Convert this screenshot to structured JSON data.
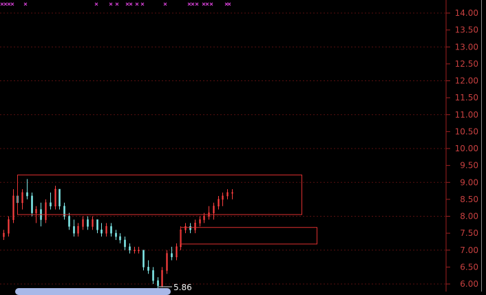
{
  "chart_data": {
    "type": "candlestick",
    "title": "",
    "ylim": [
      6.0,
      14.0
    ],
    "y_ticks": [
      "14.00",
      "13.50",
      "13.00",
      "12.50",
      "12.00",
      "11.50",
      "11.00",
      "10.50",
      "10.00",
      "9.50",
      "9.00",
      "8.50",
      "8.00",
      "7.50",
      "7.00",
      "6.50",
      "6.00"
    ],
    "grid": "horizontal dotted",
    "colors": {
      "up": "#ff4040",
      "down": "#7fe8e8",
      "axis": "#a02020",
      "box": "#e03030",
      "marker": "#d040d0",
      "grid": "#5a1010"
    },
    "bars_ohlc": [
      [
        7.4,
        7.6,
        7.3,
        7.5
      ],
      [
        7.5,
        8.0,
        7.4,
        7.9
      ],
      [
        7.9,
        8.8,
        7.8,
        8.6
      ],
      [
        8.6,
        8.9,
        8.3,
        8.4
      ],
      [
        8.4,
        8.8,
        8.2,
        8.7
      ],
      [
        8.7,
        9.1,
        8.5,
        8.6
      ],
      [
        8.6,
        8.7,
        8.0,
        8.1
      ],
      [
        8.1,
        8.3,
        7.8,
        8.2
      ],
      [
        8.2,
        8.4,
        7.7,
        7.9
      ],
      [
        7.9,
        8.5,
        7.8,
        8.4
      ],
      [
        8.4,
        8.7,
        8.2,
        8.3
      ],
      [
        8.3,
        8.9,
        8.2,
        8.8
      ],
      [
        8.8,
        8.8,
        8.2,
        8.3
      ],
      [
        8.3,
        8.4,
        7.9,
        8.0
      ],
      [
        8.0,
        8.1,
        7.6,
        7.7
      ],
      [
        7.7,
        7.9,
        7.4,
        7.5
      ],
      [
        7.5,
        7.8,
        7.4,
        7.7
      ],
      [
        7.7,
        8.0,
        7.6,
        7.9
      ],
      [
        7.9,
        8.0,
        7.6,
        7.7
      ],
      [
        7.7,
        8.0,
        7.6,
        7.9
      ],
      [
        7.9,
        7.9,
        7.5,
        7.6
      ],
      [
        7.6,
        7.8,
        7.4,
        7.5
      ],
      [
        7.5,
        7.8,
        7.4,
        7.7
      ],
      [
        7.7,
        7.8,
        7.4,
        7.5
      ],
      [
        7.5,
        7.6,
        7.3,
        7.4
      ],
      [
        7.4,
        7.5,
        7.2,
        7.3
      ],
      [
        7.3,
        7.4,
        7.0,
        7.1
      ],
      [
        7.1,
        7.2,
        6.9,
        7.0
      ],
      [
        7.0,
        7.1,
        6.9,
        7.0
      ],
      [
        7.0,
        7.1,
        6.9,
        7.0
      ],
      [
        7.0,
        7.0,
        6.4,
        6.5
      ],
      [
        6.5,
        6.7,
        6.3,
        6.4
      ],
      [
        6.4,
        6.5,
        6.0,
        6.1
      ],
      [
        6.1,
        6.2,
        5.86,
        5.95
      ],
      [
        5.95,
        6.5,
        5.9,
        6.4
      ],
      [
        6.4,
        7.0,
        6.3,
        6.9
      ],
      [
        6.9,
        7.1,
        6.7,
        6.8
      ],
      [
        6.8,
        7.2,
        6.7,
        7.1
      ],
      [
        7.1,
        7.7,
        7.0,
        7.6
      ],
      [
        7.6,
        7.8,
        7.5,
        7.7
      ],
      [
        7.7,
        7.8,
        7.5,
        7.6
      ],
      [
        7.6,
        7.9,
        7.5,
        7.8
      ],
      [
        7.8,
        8.0,
        7.7,
        7.9
      ],
      [
        7.9,
        8.1,
        7.8,
        8.0
      ],
      [
        8.0,
        8.3,
        7.9,
        8.1
      ],
      [
        8.1,
        8.4,
        7.9,
        8.3
      ],
      [
        8.3,
        8.6,
        8.2,
        8.5
      ],
      [
        8.5,
        8.7,
        8.3,
        8.6
      ],
      [
        8.6,
        8.8,
        8.5,
        8.7
      ],
      [
        8.7,
        8.8,
        8.5,
        8.7
      ]
    ],
    "min_label": "5.86",
    "boxes": [
      {
        "price_high": 9.22,
        "price_low": 8.05
      },
      {
        "price_high": 7.67,
        "price_low": 7.18
      }
    ]
  }
}
